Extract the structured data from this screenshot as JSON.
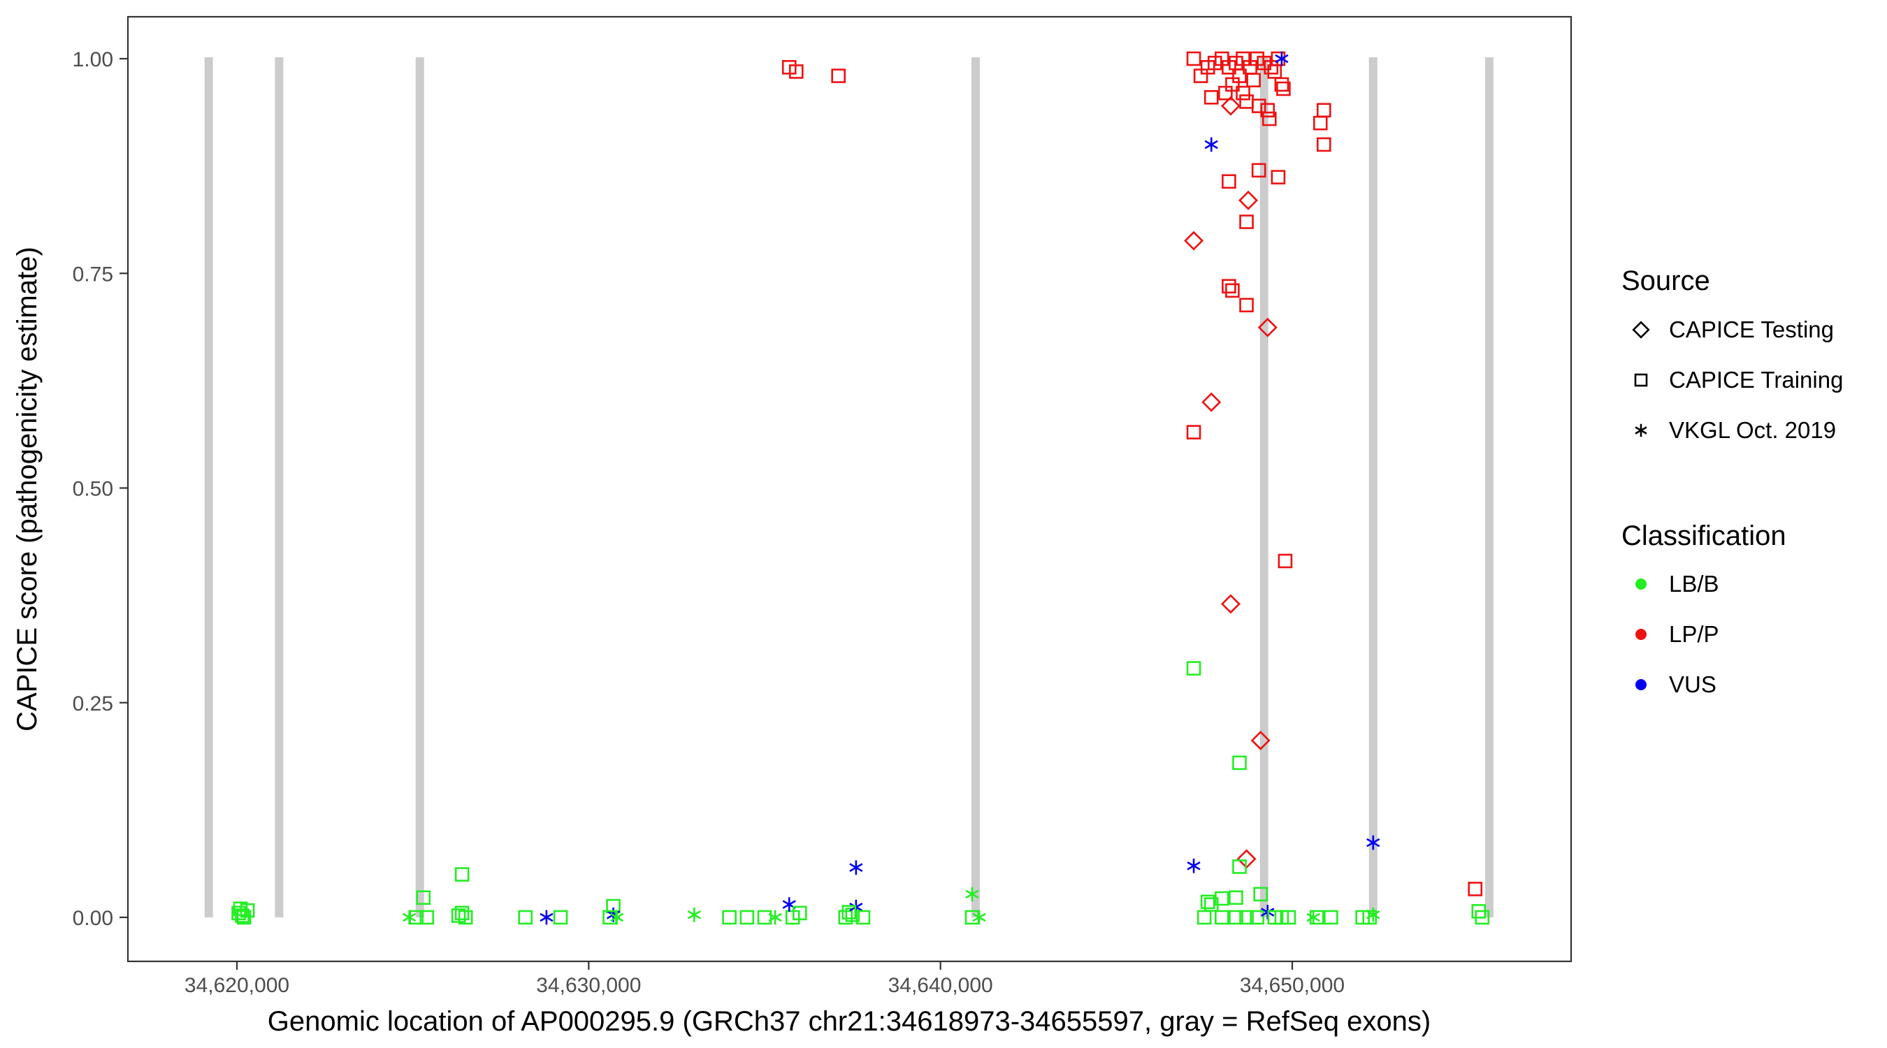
{
  "chart_data": {
    "type": "scatter",
    "title": "",
    "xlabel": "Genomic location of AP000295.9 (GRCh37 chr21:34618973-34655597, gray = RefSeq exons)",
    "ylabel": "CAPICE score (pathogenicity estimate)",
    "xlim": [
      34618973,
      34655597
    ],
    "ylim": [
      0.0,
      1.0
    ],
    "x_ticks": [
      34620000,
      34630000,
      34640000,
      34650000
    ],
    "x_tick_labels": [
      "34,620,000",
      "34,630,000",
      "34,640,000",
      "34,650,000"
    ],
    "y_ticks": [
      0.0,
      0.25,
      0.5,
      0.75,
      1.0
    ],
    "y_tick_labels": [
      "0.00",
      "0.25",
      "0.50",
      "0.75",
      "1.00"
    ],
    "grid": false,
    "exons": [
      34619200,
      34621200,
      34625200,
      34641000,
      34649200,
      34652300,
      34655600
    ],
    "legend_source": {
      "title": "Source",
      "items": [
        {
          "label": "CAPICE Testing",
          "shape": "diamond"
        },
        {
          "label": "CAPICE Training",
          "shape": "square"
        },
        {
          "label": "VKGL Oct. 2019",
          "shape": "asterisk"
        }
      ]
    },
    "legend_classification": {
      "title": "Classification",
      "items": [
        {
          "label": "LB/B",
          "color": "#22ee22"
        },
        {
          "label": "LP/P",
          "color": "#ee1111"
        },
        {
          "label": "VUS",
          "color": "#0000ee"
        }
      ]
    },
    "legend_placement": "right",
    "points": [
      {
        "x": 34620100,
        "y": 0.01,
        "shape": "square",
        "cls": "LB/B"
      },
      {
        "x": 34620200,
        "y": 0.0,
        "shape": "square",
        "cls": "LB/B"
      },
      {
        "x": 34620050,
        "y": 0.005,
        "shape": "square",
        "cls": "LB/B"
      },
      {
        "x": 34620300,
        "y": 0.008,
        "shape": "square",
        "cls": "LB/B"
      },
      {
        "x": 34620150,
        "y": 0.002,
        "shape": "square",
        "cls": "LB/B"
      },
      {
        "x": 34624900,
        "y": 0.0,
        "shape": "asterisk",
        "cls": "LB/B"
      },
      {
        "x": 34625100,
        "y": 0.0,
        "shape": "square",
        "cls": "LB/B"
      },
      {
        "x": 34625300,
        "y": 0.023,
        "shape": "square",
        "cls": "LB/B"
      },
      {
        "x": 34625400,
        "y": 0.0,
        "shape": "square",
        "cls": "LB/B"
      },
      {
        "x": 34626400,
        "y": 0.05,
        "shape": "square",
        "cls": "LB/B"
      },
      {
        "x": 34626400,
        "y": 0.005,
        "shape": "square",
        "cls": "LB/B"
      },
      {
        "x": 34626500,
        "y": 0.0,
        "shape": "square",
        "cls": "LB/B"
      },
      {
        "x": 34626300,
        "y": 0.002,
        "shape": "square",
        "cls": "LB/B"
      },
      {
        "x": 34628200,
        "y": 0.0,
        "shape": "square",
        "cls": "LB/B"
      },
      {
        "x": 34628800,
        "y": 0.0,
        "shape": "asterisk",
        "cls": "VUS"
      },
      {
        "x": 34629200,
        "y": 0.0,
        "shape": "square",
        "cls": "LB/B"
      },
      {
        "x": 34630700,
        "y": 0.013,
        "shape": "square",
        "cls": "LB/B"
      },
      {
        "x": 34630700,
        "y": 0.003,
        "shape": "asterisk",
        "cls": "VUS"
      },
      {
        "x": 34630800,
        "y": 0.0,
        "shape": "asterisk",
        "cls": "LB/B"
      },
      {
        "x": 34630600,
        "y": 0.0,
        "shape": "square",
        "cls": "LB/B"
      },
      {
        "x": 34633000,
        "y": 0.003,
        "shape": "asterisk",
        "cls": "LB/B"
      },
      {
        "x": 34634000,
        "y": 0.0,
        "shape": "square",
        "cls": "LB/B"
      },
      {
        "x": 34634500,
        "y": 0.0,
        "shape": "square",
        "cls": "LB/B"
      },
      {
        "x": 34635000,
        "y": 0.0,
        "shape": "square",
        "cls": "LB/B"
      },
      {
        "x": 34635300,
        "y": 0.0,
        "shape": "asterisk",
        "cls": "LB/B"
      },
      {
        "x": 34635800,
        "y": 0.0,
        "shape": "square",
        "cls": "LB/B"
      },
      {
        "x": 34635700,
        "y": 0.015,
        "shape": "asterisk",
        "cls": "VUS"
      },
      {
        "x": 34636000,
        "y": 0.005,
        "shape": "square",
        "cls": "LB/B"
      },
      {
        "x": 34635700,
        "y": 0.99,
        "shape": "square",
        "cls": "LP/P"
      },
      {
        "x": 34635900,
        "y": 0.985,
        "shape": "square",
        "cls": "LP/P"
      },
      {
        "x": 34637100,
        "y": 0.98,
        "shape": "square",
        "cls": "LP/P"
      },
      {
        "x": 34637300,
        "y": 0.0,
        "shape": "square",
        "cls": "LB/B"
      },
      {
        "x": 34637500,
        "y": 0.003,
        "shape": "square",
        "cls": "LB/B"
      },
      {
        "x": 34637600,
        "y": 0.058,
        "shape": "asterisk",
        "cls": "VUS"
      },
      {
        "x": 34637600,
        "y": 0.012,
        "shape": "asterisk",
        "cls": "VUS"
      },
      {
        "x": 34637800,
        "y": 0.0,
        "shape": "square",
        "cls": "LB/B"
      },
      {
        "x": 34637400,
        "y": 0.006,
        "shape": "square",
        "cls": "LB/B"
      },
      {
        "x": 34640900,
        "y": 0.027,
        "shape": "asterisk",
        "cls": "LB/B"
      },
      {
        "x": 34640900,
        "y": 0.0,
        "shape": "square",
        "cls": "LB/B"
      },
      {
        "x": 34641100,
        "y": 0.0,
        "shape": "asterisk",
        "cls": "LB/B"
      },
      {
        "x": 34647200,
        "y": 1.0,
        "shape": "square",
        "cls": "LP/P"
      },
      {
        "x": 34647400,
        "y": 0.98,
        "shape": "square",
        "cls": "LP/P"
      },
      {
        "x": 34647600,
        "y": 0.99,
        "shape": "square",
        "cls": "LP/P"
      },
      {
        "x": 34647800,
        "y": 0.995,
        "shape": "square",
        "cls": "LP/P"
      },
      {
        "x": 34648000,
        "y": 1.0,
        "shape": "square",
        "cls": "LP/P"
      },
      {
        "x": 34648200,
        "y": 0.99,
        "shape": "square",
        "cls": "LP/P"
      },
      {
        "x": 34648400,
        "y": 0.995,
        "shape": "square",
        "cls": "LP/P"
      },
      {
        "x": 34648600,
        "y": 1.0,
        "shape": "square",
        "cls": "LP/P"
      },
      {
        "x": 34648800,
        "y": 0.99,
        "shape": "square",
        "cls": "LP/P"
      },
      {
        "x": 34649000,
        "y": 1.0,
        "shape": "square",
        "cls": "LP/P"
      },
      {
        "x": 34649200,
        "y": 0.995,
        "shape": "square",
        "cls": "LP/P"
      },
      {
        "x": 34649400,
        "y": 0.99,
        "shape": "square",
        "cls": "LP/P"
      },
      {
        "x": 34649600,
        "y": 1.0,
        "shape": "square",
        "cls": "LP/P"
      },
      {
        "x": 34648500,
        "y": 0.98,
        "shape": "square",
        "cls": "LP/P"
      },
      {
        "x": 34648900,
        "y": 0.975,
        "shape": "square",
        "cls": "LP/P"
      },
      {
        "x": 34649500,
        "y": 0.985,
        "shape": "square",
        "cls": "LP/P"
      },
      {
        "x": 34647700,
        "y": 0.955,
        "shape": "square",
        "cls": "LP/P"
      },
      {
        "x": 34648100,
        "y": 0.96,
        "shape": "square",
        "cls": "LP/P"
      },
      {
        "x": 34648300,
        "y": 0.97,
        "shape": "square",
        "cls": "LP/P"
      },
      {
        "x": 34648600,
        "y": 0.96,
        "shape": "square",
        "cls": "LP/P"
      },
      {
        "x": 34648700,
        "y": 0.95,
        "shape": "square",
        "cls": "LP/P"
      },
      {
        "x": 34649050,
        "y": 0.945,
        "shape": "square",
        "cls": "LP/P"
      },
      {
        "x": 34649300,
        "y": 0.94,
        "shape": "square",
        "cls": "LP/P"
      },
      {
        "x": 34649350,
        "y": 0.93,
        "shape": "square",
        "cls": "LP/P"
      },
      {
        "x": 34649700,
        "y": 0.97,
        "shape": "square",
        "cls": "LP/P"
      },
      {
        "x": 34649750,
        "y": 0.965,
        "shape": "square",
        "cls": "LP/P"
      },
      {
        "x": 34650900,
        "y": 0.94,
        "shape": "square",
        "cls": "LP/P"
      },
      {
        "x": 34650800,
        "y": 0.925,
        "shape": "square",
        "cls": "LP/P"
      },
      {
        "x": 34650900,
        "y": 0.9,
        "shape": "square",
        "cls": "LP/P"
      },
      {
        "x": 34648250,
        "y": 0.945,
        "shape": "diamond",
        "cls": "LP/P"
      },
      {
        "x": 34647700,
        "y": 0.9,
        "shape": "asterisk",
        "cls": "VUS"
      },
      {
        "x": 34649700,
        "y": 1.0,
        "shape": "asterisk",
        "cls": "VUS"
      },
      {
        "x": 34648200,
        "y": 0.857,
        "shape": "square",
        "cls": "LP/P"
      },
      {
        "x": 34649050,
        "y": 0.87,
        "shape": "square",
        "cls": "LP/P"
      },
      {
        "x": 34649600,
        "y": 0.862,
        "shape": "square",
        "cls": "LP/P"
      },
      {
        "x": 34648750,
        "y": 0.835,
        "shape": "diamond",
        "cls": "LP/P"
      },
      {
        "x": 34648700,
        "y": 0.81,
        "shape": "square",
        "cls": "LP/P"
      },
      {
        "x": 34647200,
        "y": 0.788,
        "shape": "diamond",
        "cls": "LP/P"
      },
      {
        "x": 34648200,
        "y": 0.735,
        "shape": "square",
        "cls": "LP/P"
      },
      {
        "x": 34648300,
        "y": 0.73,
        "shape": "square",
        "cls": "LP/P"
      },
      {
        "x": 34648700,
        "y": 0.713,
        "shape": "square",
        "cls": "LP/P"
      },
      {
        "x": 34649300,
        "y": 0.687,
        "shape": "diamond",
        "cls": "LP/P"
      },
      {
        "x": 34647700,
        "y": 0.6,
        "shape": "diamond",
        "cls": "LP/P"
      },
      {
        "x": 34647200,
        "y": 0.565,
        "shape": "square",
        "cls": "LP/P"
      },
      {
        "x": 34649800,
        "y": 0.415,
        "shape": "square",
        "cls": "LP/P"
      },
      {
        "x": 34648250,
        "y": 0.365,
        "shape": "diamond",
        "cls": "LP/P"
      },
      {
        "x": 34647200,
        "y": 0.29,
        "shape": "square",
        "cls": "LB/B"
      },
      {
        "x": 34649100,
        "y": 0.206,
        "shape": "diamond",
        "cls": "LP/P"
      },
      {
        "x": 34648500,
        "y": 0.18,
        "shape": "square",
        "cls": "LB/B"
      },
      {
        "x": 34648700,
        "y": 0.068,
        "shape": "diamond",
        "cls": "LP/P"
      },
      {
        "x": 34647200,
        "y": 0.06,
        "shape": "asterisk",
        "cls": "VUS"
      },
      {
        "x": 34648500,
        "y": 0.059,
        "shape": "square",
        "cls": "LB/B"
      },
      {
        "x": 34649100,
        "y": 0.027,
        "shape": "square",
        "cls": "LB/B"
      },
      {
        "x": 34648000,
        "y": 0.022,
        "shape": "square",
        "cls": "LB/B"
      },
      {
        "x": 34648400,
        "y": 0.023,
        "shape": "square",
        "cls": "LB/B"
      },
      {
        "x": 34647600,
        "y": 0.018,
        "shape": "square",
        "cls": "LB/B"
      },
      {
        "x": 34647700,
        "y": 0.015,
        "shape": "square",
        "cls": "LB/B"
      },
      {
        "x": 34647500,
        "y": 0.0,
        "shape": "square",
        "cls": "LB/B"
      },
      {
        "x": 34648000,
        "y": 0.0,
        "shape": "square",
        "cls": "LB/B"
      },
      {
        "x": 34648400,
        "y": 0.0,
        "shape": "square",
        "cls": "LB/B"
      },
      {
        "x": 34648700,
        "y": 0.0,
        "shape": "square",
        "cls": "LB/B"
      },
      {
        "x": 34649000,
        "y": 0.0,
        "shape": "square",
        "cls": "LB/B"
      },
      {
        "x": 34649300,
        "y": 0.006,
        "shape": "asterisk",
        "cls": "VUS"
      },
      {
        "x": 34649500,
        "y": 0.0,
        "shape": "square",
        "cls": "LB/B"
      },
      {
        "x": 34649700,
        "y": 0.0,
        "shape": "square",
        "cls": "LB/B"
      },
      {
        "x": 34649900,
        "y": 0.0,
        "shape": "square",
        "cls": "LB/B"
      },
      {
        "x": 34650600,
        "y": 0.0,
        "shape": "asterisk",
        "cls": "LB/B"
      },
      {
        "x": 34650700,
        "y": 0.0,
        "shape": "square",
        "cls": "LB/B"
      },
      {
        "x": 34651100,
        "y": 0.0,
        "shape": "square",
        "cls": "LB/B"
      },
      {
        "x": 34652000,
        "y": 0.0,
        "shape": "square",
        "cls": "LB/B"
      },
      {
        "x": 34652200,
        "y": 0.0,
        "shape": "square",
        "cls": "LB/B"
      },
      {
        "x": 34652300,
        "y": 0.003,
        "shape": "asterisk",
        "cls": "LB/B"
      },
      {
        "x": 34652300,
        "y": 0.087,
        "shape": "asterisk",
        "cls": "VUS"
      },
      {
        "x": 34655200,
        "y": 0.033,
        "shape": "square",
        "cls": "LP/P"
      },
      {
        "x": 34655300,
        "y": 0.007,
        "shape": "square",
        "cls": "LB/B"
      },
      {
        "x": 34655400,
        "y": 0.0,
        "shape": "square",
        "cls": "LB/B"
      }
    ]
  }
}
